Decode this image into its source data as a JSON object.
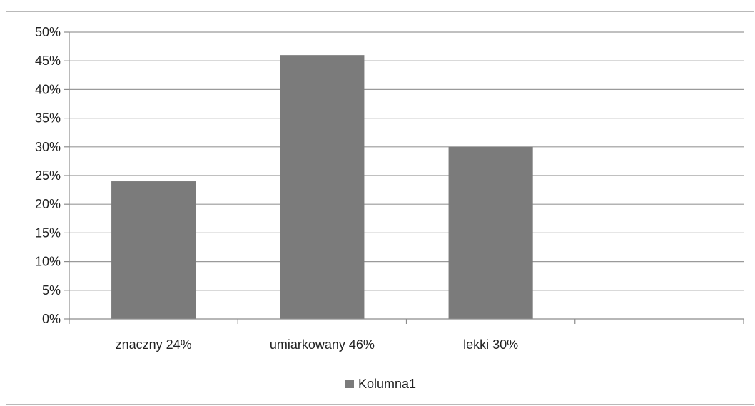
{
  "chart_data": {
    "type": "bar",
    "categories": [
      "znaczny 24%",
      "umiarkowany 46%",
      "lekki 30%",
      ""
    ],
    "series": [
      {
        "name": "Kolumna1",
        "values": [
          24,
          46,
          30,
          null
        ]
      }
    ],
    "ylim": [
      0,
      50
    ],
    "yticks": [
      "0%",
      "5%",
      "10%",
      "15%",
      "20%",
      "25%",
      "30%",
      "35%",
      "40%",
      "45%",
      "50%"
    ],
    "ytick_values": [
      0,
      5,
      10,
      15,
      20,
      25,
      30,
      35,
      40,
      45,
      50
    ],
    "grid": true,
    "legend_position": "bottom",
    "colors": {
      "bar": "#7b7b7b",
      "grid": "#9a9a9a",
      "axis": "#8c8c8c"
    }
  }
}
